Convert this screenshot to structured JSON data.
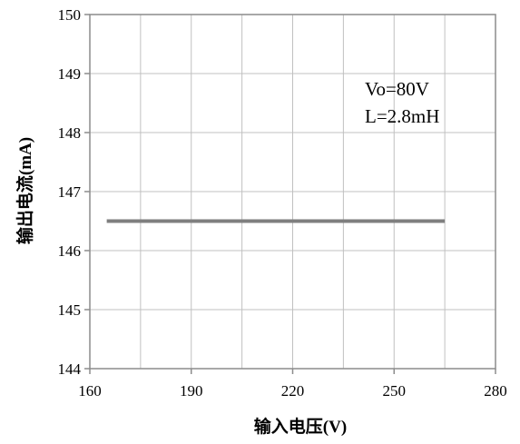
{
  "chart_data": {
    "type": "line",
    "title": "",
    "xlabel": "输入电压(V)",
    "ylabel": "输出电流(mA)",
    "xlim": [
      160,
      280
    ],
    "ylim": [
      144,
      150
    ],
    "x_ticks": [
      160,
      190,
      220,
      250,
      280
    ],
    "y_ticks": [
      144,
      145,
      146,
      147,
      148,
      149,
      150
    ],
    "x_tick_labels": [
      "160",
      "190",
      "220",
      "250",
      "280"
    ],
    "y_tick_labels": [
      "144",
      "145",
      "146",
      "147",
      "148",
      "149",
      "150"
    ],
    "grid": true,
    "legend": "none",
    "annotations": [
      "Vo=80V",
      "L=2.8mH"
    ],
    "series": [
      {
        "color": "#7f7f7f",
        "x": [
          165,
          265
        ],
        "y": [
          146.5,
          146.5
        ]
      }
    ]
  }
}
